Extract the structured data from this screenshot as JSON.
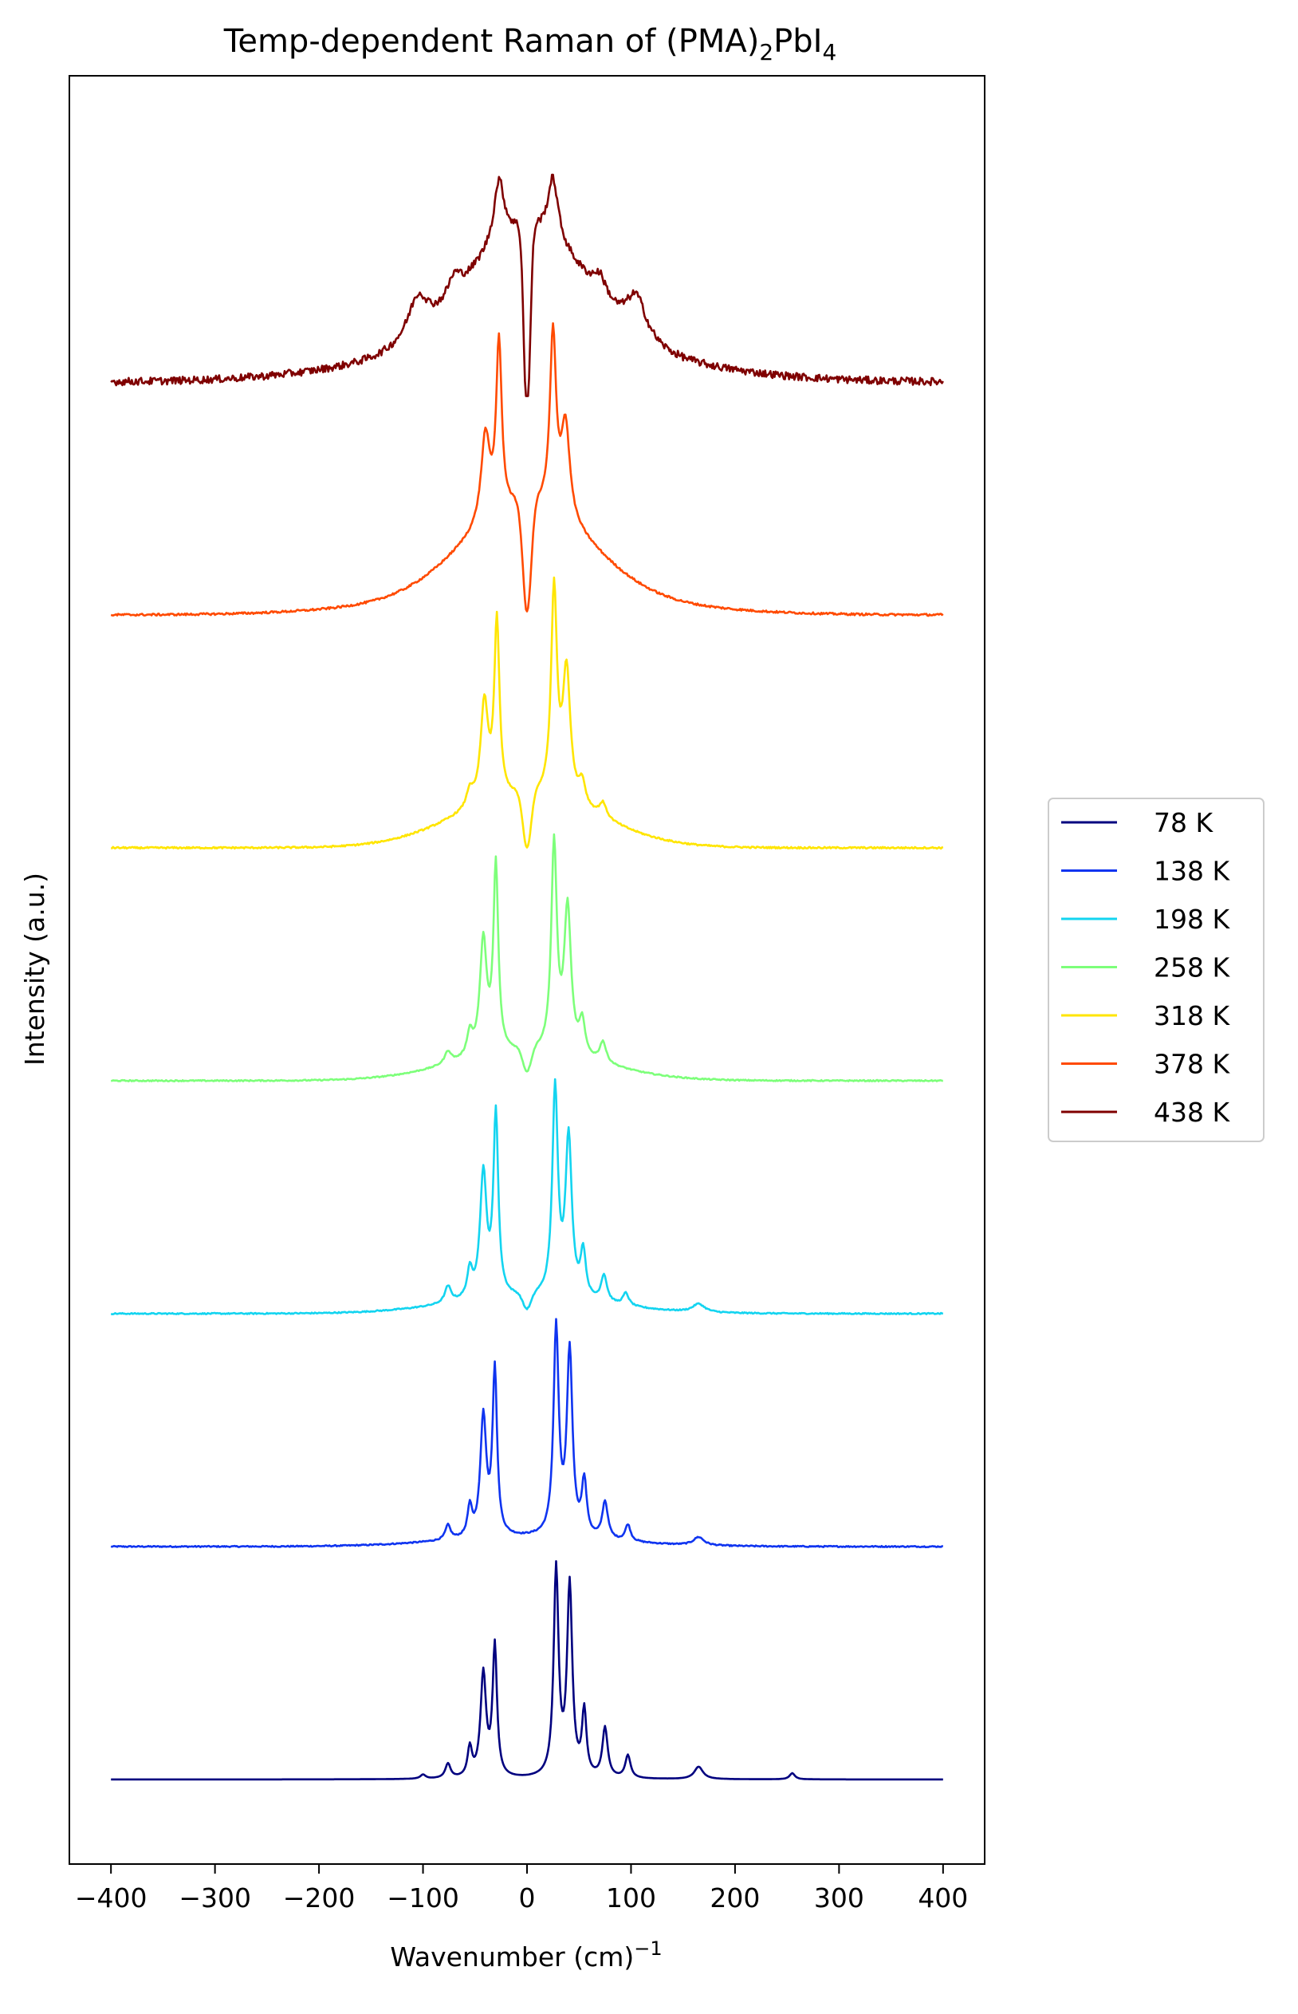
{
  "chart_data": {
    "type": "line",
    "title": "Temp-dependent Raman of (PMA)",
    "title_sub1": "2",
    "title_mid": "PbI",
    "title_sub2": "4",
    "xlabel": "Wavenumber (cm)",
    "xlabel_sup": "−1",
    "ylabel": "Intensity (a.u.)",
    "xlim": [
      -440,
      440
    ],
    "x_ticks": [
      -400,
      -300,
      -200,
      -100,
      0,
      100,
      200,
      300,
      400
    ],
    "x_tick_labels": [
      "−400",
      "−300",
      "−200",
      "−100",
      "0",
      "100",
      "200",
      "300",
      "400"
    ],
    "y_ticks": "none",
    "grid": false,
    "legend_position": "right",
    "x_range": [
      -400,
      400
    ],
    "series": [
      {
        "name": "78 K",
        "color": "#00007f",
        "offset": 0,
        "noise": 0,
        "peaks": [
          {
            "x": 28,
            "h": 1.0,
            "w": 2.8
          },
          {
            "x": 41,
            "h": 0.92,
            "w": 3.0
          },
          {
            "x": -31,
            "h": 0.63,
            "w": 2.5
          },
          {
            "x": -42,
            "h": 0.5,
            "w": 3.2
          },
          {
            "x": 55,
            "h": 0.31,
            "w": 2.5
          },
          {
            "x": 75,
            "h": 0.24,
            "w": 3.0
          },
          {
            "x": -55,
            "h": 0.14,
            "w": 2.5
          },
          {
            "x": 97,
            "h": 0.11,
            "w": 3.0
          },
          {
            "x": -76,
            "h": 0.07,
            "w": 3.0
          },
          {
            "x": 165,
            "h": 0.06,
            "w": 5.0
          },
          {
            "x": 255,
            "h": 0.03,
            "w": 3.0
          },
          {
            "x": -100,
            "h": 0.02,
            "w": 3.0
          }
        ],
        "broad": [],
        "dip": {
          "h": 0.0,
          "w": 3
        }
      },
      {
        "name": "138 K",
        "color": "#0f34f0",
        "offset": 1.0,
        "noise": 0.003,
        "peaks": [
          {
            "x": 28,
            "h": 1.0,
            "w": 3.0
          },
          {
            "x": 41,
            "h": 0.89,
            "w": 3.2
          },
          {
            "x": -31,
            "h": 0.8,
            "w": 2.6
          },
          {
            "x": -42,
            "h": 0.58,
            "w": 3.4
          },
          {
            "x": 55,
            "h": 0.26,
            "w": 2.8
          },
          {
            "x": 75,
            "h": 0.18,
            "w": 3.2
          },
          {
            "x": -55,
            "h": 0.14,
            "w": 2.6
          },
          {
            "x": 97,
            "h": 0.08,
            "w": 3.0
          },
          {
            "x": -76,
            "h": 0.07,
            "w": 3.0
          },
          {
            "x": 165,
            "h": 0.04,
            "w": 6.0
          }
        ],
        "broad": [
          {
            "x": 0,
            "h": 0.04,
            "w": 80
          }
        ],
        "dip": {
          "h": 0.0,
          "w": 3
        }
      },
      {
        "name": "198 K",
        "color": "#13d4f0",
        "offset": 2.0,
        "noise": 0.003,
        "peaks": [
          {
            "x": 27,
            "h": 1.0,
            "w": 3.2
          },
          {
            "x": 40,
            "h": 0.77,
            "w": 3.6
          },
          {
            "x": -30,
            "h": 0.88,
            "w": 2.8
          },
          {
            "x": -42,
            "h": 0.6,
            "w": 3.8
          },
          {
            "x": 54,
            "h": 0.22,
            "w": 3.0
          },
          {
            "x": 74,
            "h": 0.13,
            "w": 3.4
          },
          {
            "x": -55,
            "h": 0.13,
            "w": 3.0
          },
          {
            "x": 95,
            "h": 0.06,
            "w": 3.4
          },
          {
            "x": -76,
            "h": 0.08,
            "w": 3.6
          },
          {
            "x": 165,
            "h": 0.04,
            "w": 7.0
          }
        ],
        "broad": [
          {
            "x": 0,
            "h": 0.07,
            "w": 75
          }
        ],
        "dip": {
          "h": 0.08,
          "w": 4
        }
      },
      {
        "name": "258 K",
        "color": "#7dff7a",
        "offset": 3.0,
        "noise": 0.003,
        "peaks": [
          {
            "x": 26,
            "h": 1.0,
            "w": 3.2
          },
          {
            "x": 39,
            "h": 0.7,
            "w": 4.0
          },
          {
            "x": -30,
            "h": 0.9,
            "w": 2.8
          },
          {
            "x": -42,
            "h": 0.55,
            "w": 4.0
          },
          {
            "x": 53,
            "h": 0.16,
            "w": 3.2
          },
          {
            "x": 73,
            "h": 0.1,
            "w": 3.6
          },
          {
            "x": -55,
            "h": 0.11,
            "w": 3.2
          },
          {
            "x": -76,
            "h": 0.06,
            "w": 3.8
          }
        ],
        "broad": [
          {
            "x": 0,
            "h": 0.13,
            "w": 70
          }
        ],
        "dip": {
          "h": 0.12,
          "w": 4
        }
      },
      {
        "name": "318 K",
        "color": "#ffe500",
        "offset": 4.0,
        "noise": 0.004,
        "peaks": [
          {
            "x": 26,
            "h": 1.0,
            "w": 3.4
          },
          {
            "x": 38,
            "h": 0.62,
            "w": 4.4
          },
          {
            "x": -29,
            "h": 0.85,
            "w": 3.0
          },
          {
            "x": -41,
            "h": 0.48,
            "w": 4.4
          },
          {
            "x": 53,
            "h": 0.11,
            "w": 3.6
          },
          {
            "x": 73,
            "h": 0.07,
            "w": 4.0
          },
          {
            "x": -55,
            "h": 0.08,
            "w": 3.6
          }
        ],
        "broad": [
          {
            "x": 0,
            "h": 0.24,
            "w": 68
          }
        ],
        "dip": {
          "h": 0.28,
          "w": 4
        }
      },
      {
        "name": "378 K",
        "color": "#ff4a00",
        "offset": 5.0,
        "noise": 0.005,
        "peaks": [
          {
            "x": 25,
            "h": 0.85,
            "w": 3.6
          },
          {
            "x": 37,
            "h": 0.45,
            "w": 5.0
          },
          {
            "x": -27,
            "h": 0.82,
            "w": 3.2
          },
          {
            "x": -40,
            "h": 0.42,
            "w": 5.0
          }
        ],
        "broad": [
          {
            "x": 0,
            "h": 0.42,
            "w": 60
          },
          {
            "x": 0,
            "h": 0.1,
            "w": 120
          }
        ],
        "dip": {
          "h": 0.55,
          "w": 4
        }
      },
      {
        "name": "438 K",
        "color": "#7f0000",
        "offset": 6.0,
        "noise": 0.018,
        "peaks": [
          {
            "x": 25,
            "h": 0.3,
            "w": 6.0
          },
          {
            "x": -27,
            "h": 0.3,
            "w": 6.0
          },
          {
            "x": 105,
            "h": 0.2,
            "w": 12.0
          },
          {
            "x": -105,
            "h": 0.2,
            "w": 12.0
          },
          {
            "x": 70,
            "h": 0.1,
            "w": 8.0
          },
          {
            "x": -70,
            "h": 0.1,
            "w": 8.0
          }
        ],
        "broad": [
          {
            "x": 0,
            "h": 0.55,
            "w": 55
          },
          {
            "x": 0,
            "h": 0.18,
            "w": 130
          }
        ],
        "dip": {
          "h": 0.95,
          "w": 3
        }
      }
    ]
  }
}
